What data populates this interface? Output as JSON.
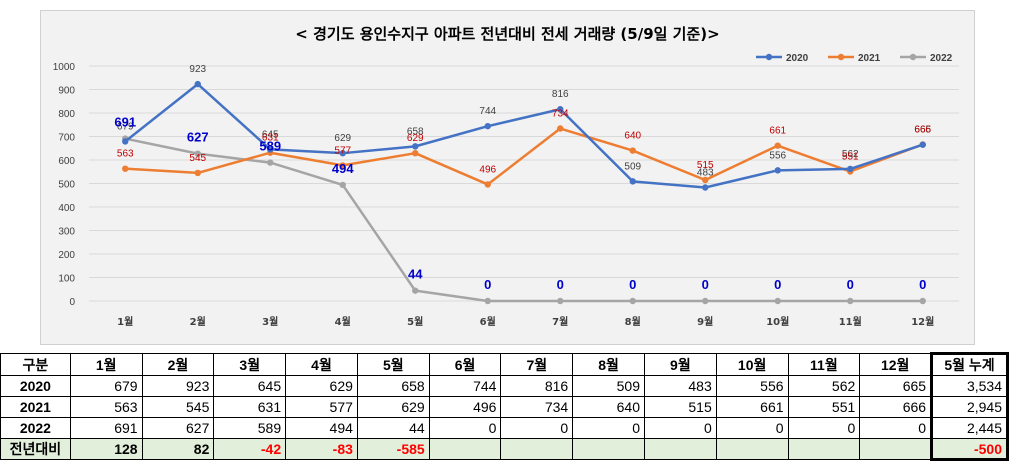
{
  "chart_data": {
    "type": "line",
    "title": "< 경기도 용인수지구  아파트 전년대비 전세 거래량 (5/9일 기준)>",
    "categories": [
      "1월",
      "2월",
      "3월",
      "4월",
      "5월",
      "6월",
      "7월",
      "8월",
      "9월",
      "10월",
      "11월",
      "12월"
    ],
    "ylim": [
      0,
      1000
    ],
    "yticks": [
      0,
      100,
      200,
      300,
      400,
      500,
      600,
      700,
      800,
      900,
      1000
    ],
    "grid": true,
    "legend": "top-right",
    "series": [
      {
        "name": "2020",
        "color": "#4472c4",
        "values": [
          679,
          923,
          645,
          629,
          658,
          744,
          816,
          509,
          483,
          556,
          562,
          665
        ]
      },
      {
        "name": "2021",
        "color": "#ed7d31",
        "values": [
          563,
          545,
          631,
          577,
          629,
          496,
          734,
          640,
          515,
          661,
          551,
          666
        ]
      },
      {
        "name": "2022",
        "color": "#a5a5a5",
        "values": [
          691,
          627,
          589,
          494,
          44,
          0,
          0,
          0,
          0,
          0,
          0,
          0
        ]
      }
    ]
  },
  "table": {
    "headers": [
      "구분",
      "1월",
      "2월",
      "3월",
      "4월",
      "5월",
      "6월",
      "7월",
      "8월",
      "9월",
      "10월",
      "11월",
      "12월",
      "5월 누계"
    ],
    "rows": [
      {
        "label": "2020",
        "cells": [
          "679",
          "923",
          "645",
          "629",
          "658",
          "744",
          "816",
          "509",
          "483",
          "556",
          "562",
          "665"
        ],
        "total": "3,534"
      },
      {
        "label": "2021",
        "cells": [
          "563",
          "545",
          "631",
          "577",
          "629",
          "496",
          "734",
          "640",
          "515",
          "661",
          "551",
          "666"
        ],
        "total": "2,945"
      },
      {
        "label": "2022",
        "cells": [
          "691",
          "627",
          "589",
          "494",
          "44",
          "0",
          "0",
          "0",
          "0",
          "0",
          "0",
          "0"
        ],
        "total": "2,445"
      }
    ],
    "diff": {
      "label": "전년대비",
      "cells": [
        "128",
        "82",
        "-42",
        "-83",
        "-585",
        "",
        "",
        "",
        "",
        "",
        "",
        ""
      ],
      "total": "-500"
    }
  }
}
